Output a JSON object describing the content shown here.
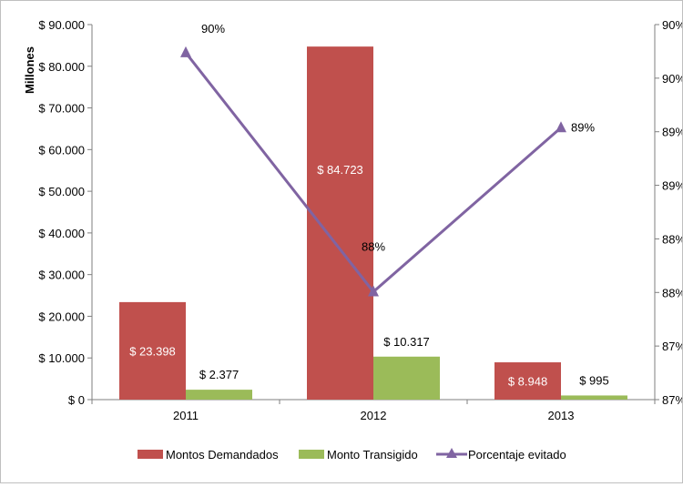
{
  "chart_data": {
    "type": "bar",
    "categories": [
      "2011",
      "2012",
      "2013"
    ],
    "ylabel": "Millones",
    "ylim": [
      0,
      90000
    ],
    "left_ticks": [
      "$ 0",
      "$ 10.000",
      "$ 20.000",
      "$ 30.000",
      "$ 40.000",
      "$ 50.000",
      "$ 60.000",
      "$ 70.000",
      "$ 80.000",
      "$ 90.000"
    ],
    "right_ticks": [
      "87%",
      "87%",
      "88%",
      "88%",
      "89%",
      "89%",
      "90%",
      "90%"
    ],
    "right_ylim": [
      86.5,
      90.5
    ],
    "series": [
      {
        "name": "Montos Demandados",
        "type": "bar",
        "color": "#C0504D",
        "values": [
          23398,
          84723,
          8948
        ],
        "labels": [
          "$ 23.398",
          "$ 84.723",
          "$ 8.948"
        ]
      },
      {
        "name": "Monto Transigido",
        "type": "bar",
        "color": "#9BBB59",
        "values": [
          2377,
          10317,
          995
        ],
        "labels": [
          "$ 2.377",
          "$ 10.317",
          "$ 995"
        ]
      },
      {
        "name": "Porcentaje evitado",
        "type": "line",
        "axis": "right",
        "color": "#8064A2",
        "values": [
          90.2,
          87.65,
          89.4
        ],
        "labels": [
          "90%",
          "88%",
          "89%"
        ]
      }
    ],
    "grid": false,
    "legend": "bottom"
  }
}
